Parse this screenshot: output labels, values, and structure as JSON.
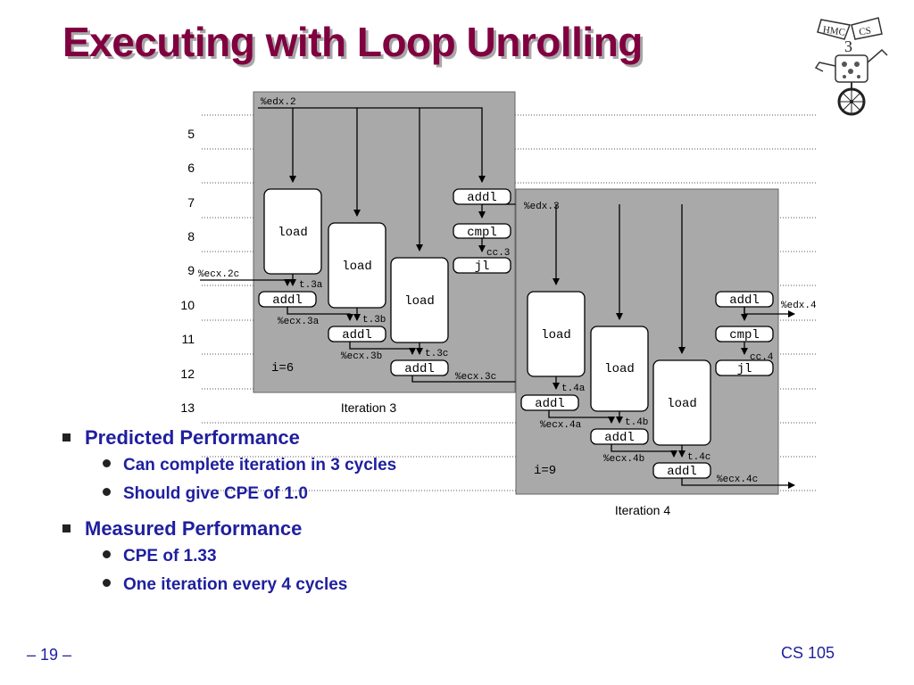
{
  "title": "Executing with Loop Unrolling",
  "diagram": {
    "cycle_labels": [
      "5",
      "6",
      "7",
      "8",
      "9",
      "10",
      "11",
      "12",
      "13"
    ],
    "iteration3": {
      "caption": "Iteration 3",
      "i_label": "i=6",
      "edx_in": "%edx.2",
      "ops": {
        "load1": "load",
        "load2": "load",
        "load3": "load",
        "addl_edx": "addl",
        "cmpl": "cmpl",
        "jl": "jl",
        "addl1": "addl",
        "addl2": "addl",
        "addl3": "addl"
      },
      "labels": {
        "ecx_in": "%ecx.2c",
        "t_a": "t.3a",
        "t_b": "t.3b",
        "t_c": "t.3c",
        "ecx_a": "%ecx.3a",
        "ecx_b": "%ecx.3b",
        "ecx_c": "%ecx.3c",
        "cc": "cc.3"
      }
    },
    "iteration4": {
      "caption": "Iteration 4",
      "i_label": "i=9",
      "edx_in": "%edx.3",
      "edx_out": "%edx.4",
      "ops": {
        "load1": "load",
        "load2": "load",
        "load3": "load",
        "addl_edx": "addl",
        "cmpl": "cmpl",
        "jl": "jl",
        "addl1": "addl",
        "addl2": "addl",
        "addl3": "addl"
      },
      "labels": {
        "t_a": "t.4a",
        "t_b": "t.4b",
        "t_c": "t.4c",
        "ecx_a": "%ecx.4a",
        "ecx_b": "%ecx.4b",
        "ecx_c": "%ecx.4c",
        "cc": "cc.4"
      }
    }
  },
  "bullets": [
    {
      "text": "Predicted Performance",
      "sub": [
        "Can complete iteration in 3 cycles",
        "Should give CPE of 1.0"
      ]
    },
    {
      "text": "Measured Performance",
      "sub": [
        "CPE of 1.33",
        "One iteration every 4 cycles"
      ]
    }
  ],
  "footer": {
    "page": "– 19 –",
    "course": "CS 105"
  },
  "logo": {
    "text": "HMC CS"
  }
}
